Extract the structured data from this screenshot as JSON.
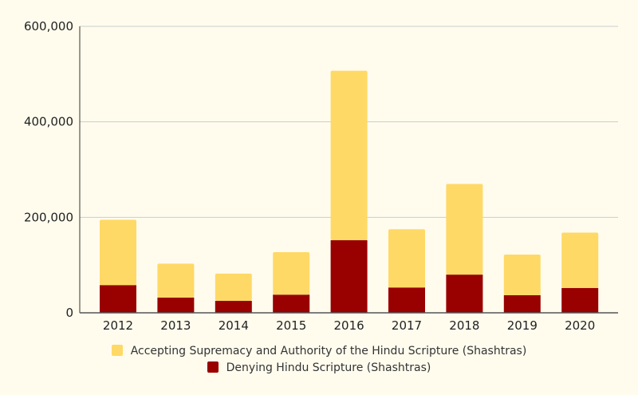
{
  "chart_data": {
    "type": "bar",
    "stacked": true,
    "categories": [
      "2012",
      "2013",
      "2014",
      "2015",
      "2016",
      "2017",
      "2018",
      "2019",
      "2020"
    ],
    "series": [
      {
        "name": "Denying Hindu Scripture (Shashtras)",
        "color": "#990000",
        "values": [
          58000,
          32000,
          25000,
          38000,
          152000,
          53000,
          80000,
          37000,
          52000
        ]
      },
      {
        "name": "Accepting Supremacy and Authority of the Hindu Scripture (Shashtras)",
        "color": "#ffd966",
        "values": [
          137000,
          71000,
          57000,
          89000,
          355000,
          122000,
          190000,
          85000,
          116000
        ]
      }
    ],
    "yticks": [
      "0",
      "200,000",
      "400,000",
      "600,000"
    ],
    "ylim": [
      0,
      600000
    ],
    "grid": true,
    "legend_placement": "bottom"
  }
}
